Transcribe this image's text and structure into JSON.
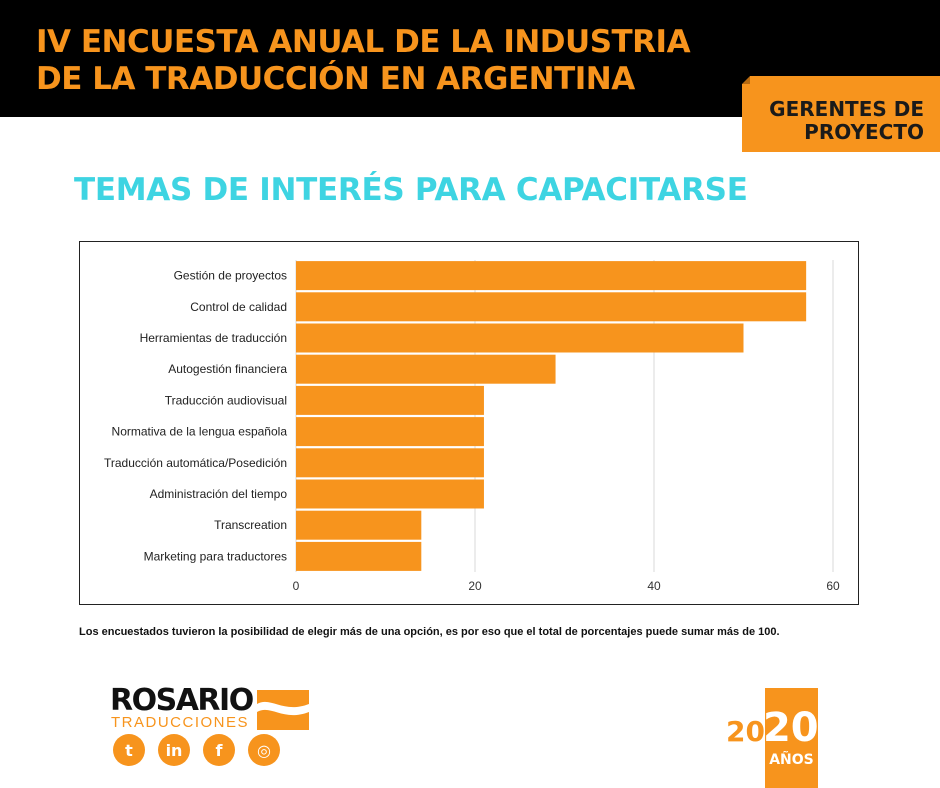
{
  "header": {
    "title_line1": "IV ENCUESTA ANUAL DE LA INDUSTRIA",
    "title_line2": "DE LA TRADUCCIÓN EN ARGENTINA",
    "badge_line1": "GERENTES DE",
    "badge_line2": "PROYECTO"
  },
  "subtitle": "TEMAS DE INTERÉS PARA CAPACITARSE",
  "chart_data": {
    "type": "bar",
    "orientation": "horizontal",
    "categories": [
      "Gestión de proyectos",
      "Control de calidad",
      "Herramientas de traducción",
      "Autogestión financiera",
      "Traducción audiovisual",
      "Normativa de la lengua española",
      "Traducción automática/Posedición",
      "Administración del tiempo",
      "Transcreation",
      "Marketing para traductores"
    ],
    "values": [
      57,
      57,
      50,
      29,
      21,
      21,
      21,
      21,
      14,
      14
    ],
    "xlim": [
      0,
      60
    ],
    "xticks": [
      0,
      20,
      40,
      60
    ],
    "grid": true,
    "legend": "none",
    "bar_color": "#f7941d"
  },
  "note": "Los encuestados tuvieron la posibilidad de elegir más de una opción, es por eso que el total de porcentajes puede sumar más de 100.",
  "footer": {
    "logo_main": "ROSARIO",
    "logo_sub": "TRADUCCIONES",
    "social": [
      {
        "icon": "twitter-icon",
        "glyph": "t"
      },
      {
        "icon": "linkedin-icon",
        "glyph": "in"
      },
      {
        "icon": "facebook-icon",
        "glyph": "f"
      },
      {
        "icon": "instagram-icon",
        "glyph": "◎"
      }
    ],
    "anniv_part1": "20",
    "anniv_part2": "20",
    "anniv_word": "AÑOS"
  },
  "colors": {
    "accent": "#f7941d",
    "title_cyan": "#3ed4e2",
    "header_bg": "#000000"
  }
}
